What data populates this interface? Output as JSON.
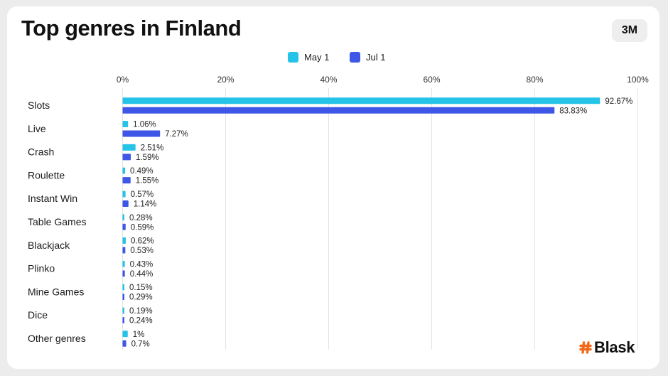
{
  "title": "Top genres in Finland",
  "period_button": "3M",
  "logo": "Blask",
  "colors": {
    "may": "#25c3e8",
    "jul": "#3e57e6",
    "grid": "#e3e3e3",
    "text": "#222222",
    "logo_hash": "#f26a1b"
  },
  "chart_data": {
    "type": "bar",
    "orientation": "horizontal",
    "title": "Top genres in Finland",
    "categories": [
      "Slots",
      "Live",
      "Crash",
      "Roulette",
      "Instant Win",
      "Table Games",
      "Blackjack",
      "Plinko",
      "Mine Games",
      "Dice",
      "Other genres"
    ],
    "series": [
      {
        "name": "May 1",
        "values": [
          92.67,
          1.06,
          2.51,
          0.49,
          0.57,
          0.28,
          0.62,
          0.43,
          0.15,
          0.19,
          1
        ],
        "labels": [
          "92.67%",
          "1.06%",
          "2.51%",
          "0.49%",
          "0.57%",
          "0.28%",
          "0.62%",
          "0.43%",
          "0.15%",
          "0.19%",
          "1%"
        ]
      },
      {
        "name": "Jul 1",
        "values": [
          83.83,
          7.27,
          1.59,
          1.55,
          1.14,
          0.59,
          0.53,
          0.44,
          0.29,
          0.24,
          0.7
        ],
        "labels": [
          "83.83%",
          "7.27%",
          "1.59%",
          "1.55%",
          "1.14%",
          "0.59%",
          "0.53%",
          "0.44%",
          "0.29%",
          "0.24%",
          "0.7%"
        ]
      }
    ],
    "xlim": [
      0,
      100
    ],
    "x_ticks": [
      "0%",
      "20%",
      "40%",
      "60%",
      "80%",
      "100%"
    ],
    "legend_position": "top-center",
    "grid": true
  }
}
